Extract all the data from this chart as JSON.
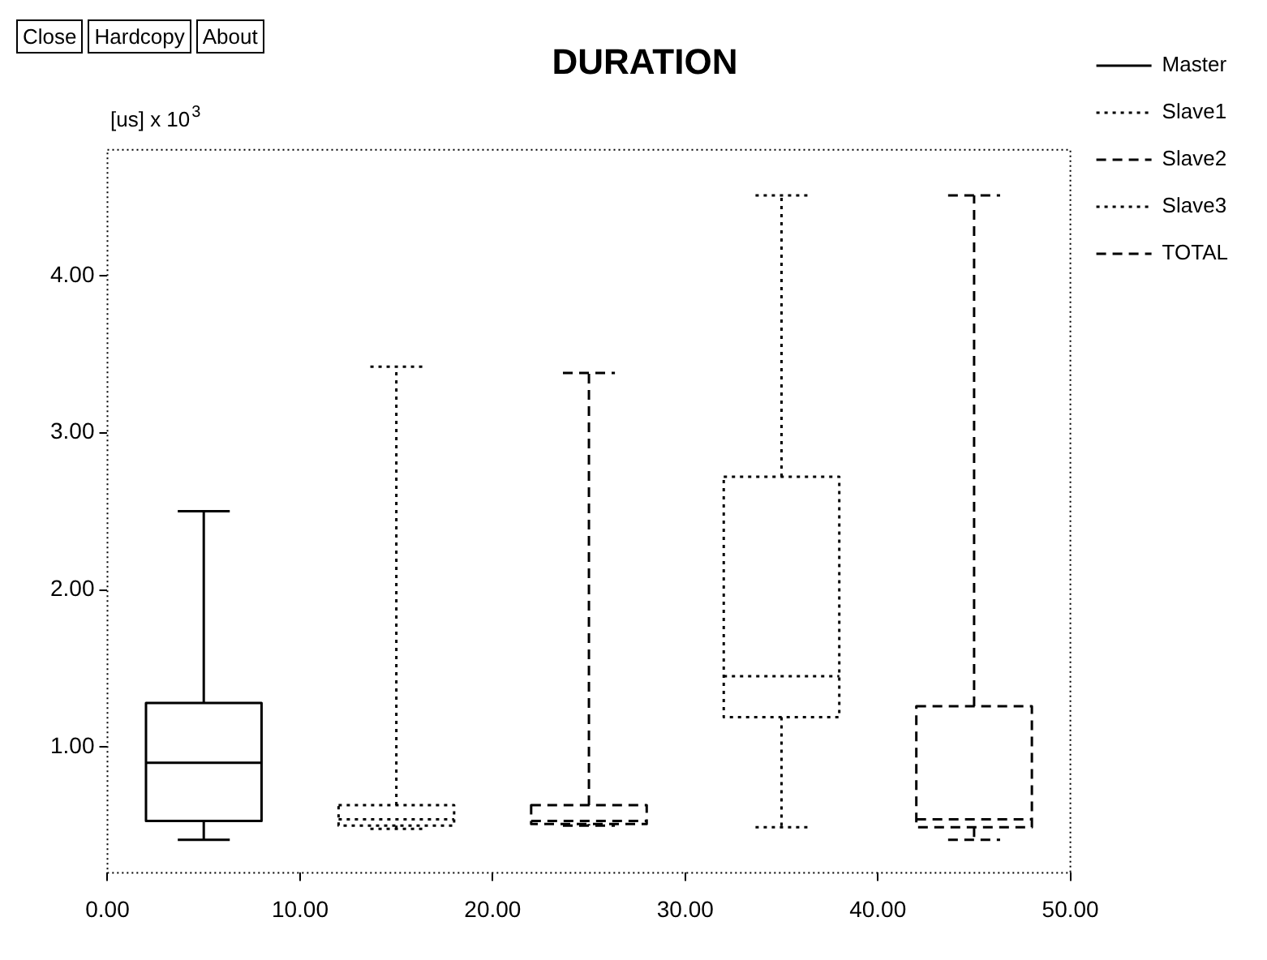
{
  "chart_data": {
    "type": "box",
    "title": "DURATION",
    "ylabel": "[us] x 10$^{3}$",
    "annotations": [
      "Close",
      "Hardcopy",
      "About"
    ],
    "xlim": [
      0,
      50
    ],
    "xticks": [
      {
        "value": 0,
        "label": "0.00"
      },
      {
        "value": 10,
        "label": "10.00"
      },
      {
        "value": 20,
        "label": "20.00"
      },
      {
        "value": 30,
        "label": "30.00"
      },
      {
        "value": 40,
        "label": "40.00"
      },
      {
        "value": 50,
        "label": "50.00"
      }
    ],
    "ylim": [
      0.2,
      4.8
    ],
    "yticks": [
      {
        "value": 1,
        "label": "1.00"
      },
      {
        "value": 2,
        "label": "2.00"
      },
      {
        "value": 3,
        "label": "3.00"
      },
      {
        "value": 4,
        "label": "4.00"
      }
    ],
    "grid": false,
    "legend": "top right",
    "series": [
      {
        "name": "Master",
        "color": "#000000",
        "line_style": "solid",
        "x": [
          5
        ],
        "boxes": [
          {
            "low": 0.41,
            "q1": 0.53,
            "median": 0.9,
            "q3": 1.28,
            "high": 2.5
          }
        ]
      },
      {
        "name": "Slave1",
        "color": "#000000",
        "line_style": "dotted",
        "x": [
          15
        ],
        "boxes": [
          {
            "low": 0.48,
            "q1": 0.5,
            "median": 0.54,
            "q3": 0.63,
            "high": 3.42
          }
        ]
      },
      {
        "name": "Slave2",
        "color": "#000000",
        "line_style": "dashed",
        "x": [
          25
        ],
        "boxes": [
          {
            "low": 0.5,
            "q1": 0.51,
            "median": 0.53,
            "q3": 0.63,
            "high": 3.38
          }
        ]
      },
      {
        "name": "Slave3",
        "color": "#000000",
        "line_style": "dotted",
        "x": [
          35
        ],
        "boxes": [
          {
            "low": 0.49,
            "q1": 1.19,
            "median": 1.45,
            "q3": 2.72,
            "high": 4.51
          }
        ]
      },
      {
        "name": "TOTAL",
        "color": "#000000",
        "line_style": "dashed",
        "x": [
          45
        ],
        "boxes": [
          {
            "low": 0.41,
            "q1": 0.49,
            "median": 0.54,
            "q3": 1.26,
            "high": 4.51
          }
        ]
      }
    ]
  }
}
